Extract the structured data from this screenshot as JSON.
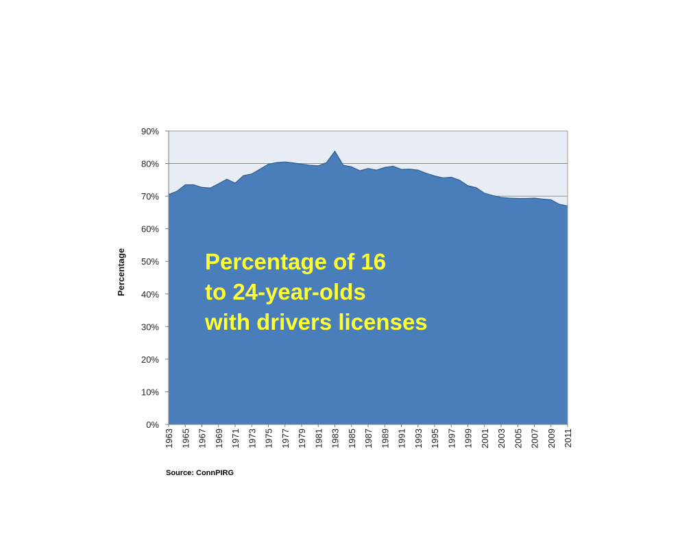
{
  "chart_data": {
    "type": "area",
    "title": "",
    "xlabel": "",
    "ylabel": "Percentage",
    "ylim": [
      0,
      90
    ],
    "xlim": [
      1963,
      2011
    ],
    "y_ticks": [
      "0%",
      "10%",
      "20%",
      "30%",
      "40%",
      "50%",
      "60%",
      "70%",
      "80%",
      "90%"
    ],
    "y_tick_values": [
      0,
      10,
      20,
      30,
      40,
      50,
      60,
      70,
      80,
      90
    ],
    "x_ticks": [
      "1963",
      "1965",
      "1967",
      "1969",
      "1971",
      "1973",
      "1975",
      "1977",
      "1979",
      "1981",
      "1983",
      "1985",
      "1987",
      "1989",
      "1991",
      "1993",
      "1995",
      "1997",
      "1999",
      "2001",
      "2003",
      "2005",
      "2007",
      "2009",
      "2011"
    ],
    "grid": true,
    "series": [
      {
        "x": [
          1963,
          1964,
          1965,
          1966,
          1967,
          1968,
          1969,
          1970,
          1971,
          1972,
          1973,
          1974,
          1975,
          1976,
          1977,
          1978,
          1979,
          1980,
          1981,
          1982,
          1983,
          1984,
          1985,
          1986,
          1987,
          1988,
          1989,
          1990,
          1991,
          1992,
          1993,
          1994,
          1995,
          1996,
          1997,
          1998,
          1999,
          2000,
          2001,
          2002,
          2003,
          2004,
          2005,
          2006,
          2007,
          2008,
          2009,
          2010,
          2011
        ],
        "values": [
          70.5,
          71.5,
          73.5,
          73.5,
          72.7,
          72.5,
          73.8,
          75.2,
          74,
          76.3,
          76.8,
          78.3,
          79.8,
          80.3,
          80.5,
          80.2,
          79.8,
          79.5,
          79.3,
          80.3,
          83.8,
          79.5,
          79,
          77.8,
          78.5,
          78,
          78.8,
          79.2,
          78.2,
          78.3,
          78,
          77,
          76.2,
          75.6,
          75.8,
          74.9,
          73.2,
          72.6,
          70.9,
          70.2,
          69.6,
          69.4,
          69.3,
          69.3,
          69.4,
          69.1,
          68.9,
          67.5,
          67
        ]
      }
    ],
    "colors": {
      "area": "#4a7ebb",
      "plot_bg": "#e8edf5",
      "grid": "#8c8c8c"
    },
    "annotation": [
      "Percentage of 16",
      "to 24-year-olds",
      "with drivers licenses"
    ],
    "source": "Source: ConnPIRG"
  }
}
